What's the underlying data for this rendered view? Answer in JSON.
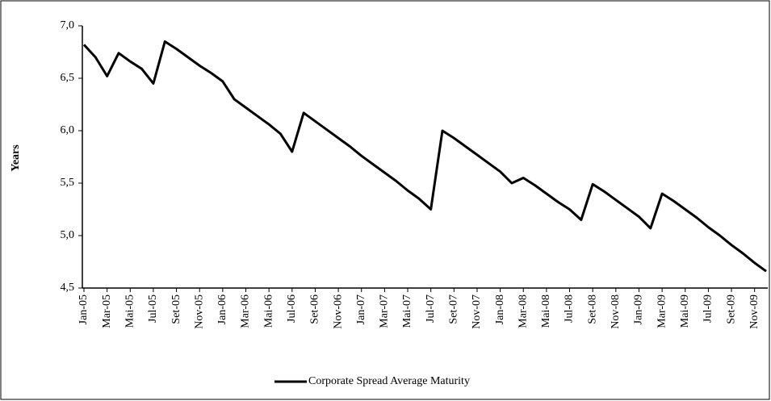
{
  "chart_data": {
    "type": "line",
    "y_label": "Years",
    "categories": [
      "Jan-05",
      null,
      "Mar-05",
      null,
      "Mai-05",
      null,
      "Jul-05",
      null,
      "Set-05",
      null,
      "Nov-05",
      null,
      "Jan-06",
      null,
      "Mar-06",
      null,
      "Mai-06",
      null,
      "Jul-06",
      null,
      "Set-06",
      null,
      "Nov-06",
      null,
      "Jan-07",
      null,
      "Mar-07",
      null,
      "Mai-07",
      null,
      "Jul-07",
      null,
      "Set-07",
      null,
      "Nov-07",
      null,
      "Jan-08",
      null,
      "Mar-08",
      null,
      "Mai-08",
      null,
      "Jul-08",
      null,
      "Set-08",
      null,
      "Nov-08",
      null,
      "Jan-09",
      null,
      "Mar-09",
      null,
      "Mai-09",
      null,
      "Jul-09",
      null,
      "Set-09",
      null,
      "Nov-09",
      null
    ],
    "series": [
      {
        "name": "Corporate Spread Average Maturity",
        "color": "#000000",
        "values": [
          6.82,
          6.7,
          6.52,
          6.74,
          6.66,
          6.59,
          6.45,
          6.85,
          6.78,
          6.7,
          6.62,
          6.55,
          6.47,
          6.3,
          6.22,
          6.14,
          6.06,
          5.97,
          5.8,
          6.17,
          6.09,
          6.01,
          5.93,
          5.85,
          5.76,
          5.68,
          5.6,
          5.52,
          5.43,
          5.35,
          5.25,
          6.0,
          5.93,
          5.85,
          5.77,
          5.69,
          5.61,
          5.5,
          5.55,
          5.48,
          5.4,
          5.32,
          5.25,
          5.15,
          5.49,
          5.42,
          5.34,
          5.26,
          5.18,
          5.07,
          5.4,
          5.33,
          5.25,
          5.17,
          5.08,
          5.0,
          4.91,
          4.83,
          4.74,
          4.66
        ]
      }
    ],
    "ylim": [
      4.5,
      7.0
    ],
    "yticks": [
      {
        "value": 4.5,
        "label": "4,5"
      },
      {
        "value": 5.0,
        "label": "5,0"
      },
      {
        "value": 5.5,
        "label": "5,5"
      },
      {
        "value": 6.0,
        "label": "6,0"
      },
      {
        "value": 6.5,
        "label": "6,5"
      },
      {
        "value": 7.0,
        "label": "7,0"
      }
    ],
    "grid": false,
    "legend": "bottom"
  }
}
